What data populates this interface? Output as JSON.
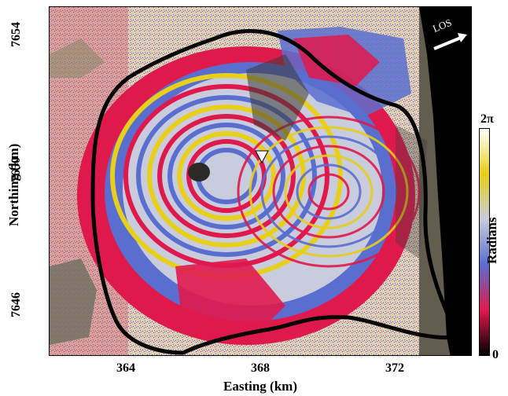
{
  "map": {
    "x_axis": {
      "title": "Easting (km)",
      "ticks": [
        "364",
        "368",
        "372"
      ]
    },
    "y_axis": {
      "title": "Northing (km)",
      "ticks": [
        "7654",
        "7650",
        "7646"
      ]
    },
    "colorbar": {
      "title": "Radians",
      "max_label": "2π",
      "min_label": "0",
      "colors": [
        "#000000",
        "#e0194d",
        "#5a6ed0",
        "#c8ccdc",
        "#e8cf1a",
        "#ffffff"
      ]
    },
    "los_label": "LOS",
    "icons": [
      "los-arrow-icon",
      "triangle-marker-icon"
    ]
  }
}
